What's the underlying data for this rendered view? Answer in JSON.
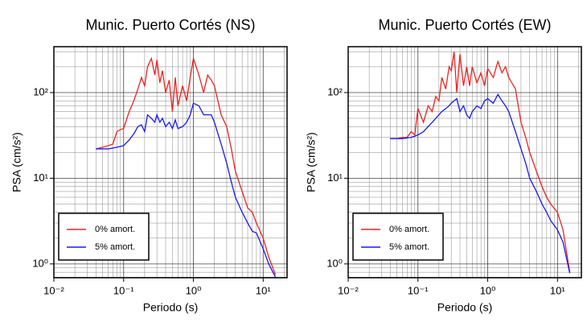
{
  "chart_data": [
    {
      "type": "line",
      "title": "Munic. Puerto Cortés (NS)",
      "x_label": "Periodo (s)",
      "y_label": "PSA (cm/s²)",
      "x_scale": "log",
      "y_scale": "log",
      "grid": true,
      "legend": "lower left",
      "xlim": [
        0.01,
        22
      ],
      "ylim": [
        0.69,
        343
      ],
      "xticks": [
        {
          "value": 0.01,
          "label": "10⁻²"
        },
        {
          "value": 0.1,
          "label": "10⁻¹"
        },
        {
          "value": 1,
          "label": "10⁰"
        },
        {
          "value": 10,
          "label": "10¹"
        }
      ],
      "yticks": [
        {
          "value": 1,
          "label": "10⁰"
        },
        {
          "value": 10,
          "label": "10¹"
        },
        {
          "value": 100,
          "label": "10²"
        }
      ],
      "x": [
        0.04,
        0.05,
        0.06,
        0.07,
        0.08,
        0.09,
        0.1,
        0.12,
        0.14,
        0.16,
        0.18,
        0.2,
        0.22,
        0.25,
        0.28,
        0.3,
        0.33,
        0.36,
        0.4,
        0.45,
        0.5,
        0.55,
        0.6,
        0.7,
        0.8,
        0.9,
        1.0,
        1.2,
        1.4,
        1.6,
        1.8,
        2.0,
        2.5,
        3.0,
        3.5,
        4.0,
        5.0,
        6.0,
        7.0,
        8.0,
        10,
        12,
        15
      ],
      "series": [
        {
          "name": "0% amort.",
          "color": "#ee2222",
          "values": [
            22,
            23,
            24,
            25,
            35,
            37,
            38,
            60,
            80,
            110,
            150,
            120,
            200,
            250,
            160,
            240,
            130,
            180,
            100,
            140,
            60,
            150,
            70,
            120,
            80,
            150,
            250,
            160,
            100,
            160,
            140,
            120,
            55,
            40,
            22,
            12,
            7,
            4.5,
            4,
            3,
            2,
            1.2,
            0.75
          ]
        },
        {
          "name": "5% amort.",
          "color": "#1a1aee",
          "values": [
            22,
            22,
            22,
            22.5,
            23,
            23.5,
            24,
            28,
            33,
            40,
            42,
            35,
            55,
            50,
            45,
            55,
            45,
            50,
            40,
            45,
            38,
            48,
            38,
            40,
            45,
            55,
            75,
            70,
            55,
            55,
            55,
            45,
            25,
            15,
            9,
            6,
            4,
            3,
            2.4,
            2.3,
            1.5,
            1.0,
            0.7
          ]
        }
      ]
    },
    {
      "type": "line",
      "title": "Munic. Puerto Cortés (EW)",
      "x_label": "Periodo (s)",
      "y_label": "PSA (cm/s²)",
      "x_scale": "log",
      "y_scale": "log",
      "grid": true,
      "legend": "lower left",
      "xlim": [
        0.01,
        22
      ],
      "ylim": [
        0.69,
        343
      ],
      "xticks": [
        {
          "value": 0.01,
          "label": "10⁻²"
        },
        {
          "value": 0.1,
          "label": "10⁻¹"
        },
        {
          "value": 1,
          "label": "10⁰"
        },
        {
          "value": 10,
          "label": "10¹"
        }
      ],
      "yticks": [
        {
          "value": 1,
          "label": "10⁰"
        },
        {
          "value": 10,
          "label": "10¹"
        },
        {
          "value": 100,
          "label": "10²"
        }
      ],
      "x": [
        0.04,
        0.05,
        0.06,
        0.07,
        0.08,
        0.09,
        0.1,
        0.12,
        0.14,
        0.16,
        0.18,
        0.2,
        0.22,
        0.25,
        0.28,
        0.3,
        0.33,
        0.36,
        0.4,
        0.45,
        0.5,
        0.55,
        0.6,
        0.7,
        0.8,
        0.9,
        1.0,
        1.2,
        1.4,
        1.6,
        1.8,
        2.0,
        2.5,
        3.0,
        3.5,
        4.0,
        5.0,
        6.0,
        7.0,
        8.0,
        10,
        12,
        15
      ],
      "series": [
        {
          "name": "0% amort.",
          "color": "#ee2222",
          "values": [
            29,
            29,
            30,
            30,
            35,
            32,
            65,
            45,
            70,
            60,
            90,
            80,
            150,
            110,
            200,
            180,
            300,
            100,
            280,
            120,
            200,
            120,
            200,
            130,
            170,
            120,
            190,
            150,
            230,
            170,
            200,
            150,
            110,
            45,
            30,
            20,
            12,
            8,
            6,
            5,
            4,
            2.5,
            0.8
          ]
        },
        {
          "name": "5% amort.",
          "color": "#1a1aee",
          "values": [
            29,
            29,
            29,
            29.5,
            30,
            31,
            32,
            35,
            40,
            45,
            50,
            55,
            60,
            65,
            70,
            75,
            80,
            85,
            60,
            70,
            55,
            50,
            60,
            70,
            65,
            80,
            85,
            75,
            95,
            80,
            70,
            60,
            35,
            22,
            15,
            10,
            7,
            5,
            4,
            3.2,
            2.5,
            1.8,
            0.78
          ]
        }
      ]
    }
  ]
}
